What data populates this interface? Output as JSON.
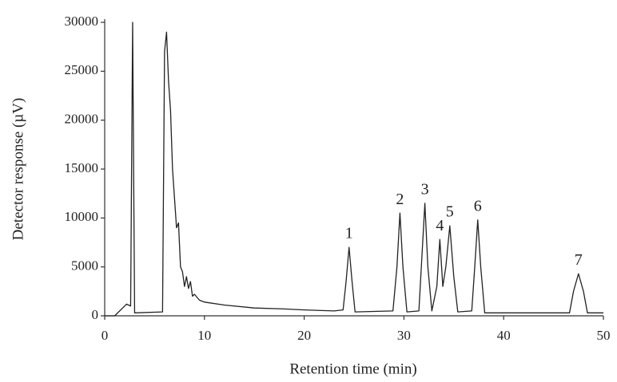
{
  "chart_data": {
    "type": "line",
    "xlabel": "Retention time (min)",
    "ylabel": "Detector response (µV)",
    "x": [
      0,
      1,
      1.8,
      2.2,
      2.6,
      2.8,
      2.9,
      3.0,
      5.8,
      6.0,
      6.2,
      6.4,
      6.6,
      6.8,
      7.0,
      7.2,
      7.4,
      7.6,
      7.8,
      8.0,
      8.2,
      8.4,
      8.6,
      8.8,
      9.0,
      9.5,
      10,
      12,
      15,
      18,
      20,
      23,
      23.9,
      24.2,
      24.5,
      24.8,
      25.1,
      28.9,
      29.3,
      29.6,
      29.9,
      30.3,
      31.5,
      31.8,
      32.1,
      32.4,
      32.8,
      33.3,
      33.6,
      33.9,
      34.2,
      34.6,
      35.0,
      35.4,
      36.8,
      37.1,
      37.4,
      37.7,
      38.1,
      46.6,
      47.0,
      47.5,
      48.0,
      48.4,
      50
    ],
    "values": [
      0,
      0,
      800,
      1200,
      1000,
      30000,
      15000,
      300,
      400,
      27000,
      29000,
      24000,
      21000,
      15000,
      12000,
      9000,
      9500,
      5000,
      4500,
      3000,
      4000,
      2800,
      3500,
      2000,
      2200,
      1600,
      1400,
      1100,
      800,
      700,
      600,
      500,
      600,
      3500,
      7000,
      3500,
      400,
      500,
      5000,
      10500,
      5000,
      400,
      500,
      6000,
      11500,
      5000,
      500,
      3000,
      7800,
      3000,
      5000,
      9200,
      4000,
      400,
      500,
      5000,
      9800,
      5000,
      300,
      300,
      2500,
      4300,
      2500,
      300,
      300
    ],
    "color": "#222222",
    "xlim": [
      0,
      50
    ],
    "xticks": [
      0,
      10,
      20,
      30,
      40,
      50
    ],
    "ylim": [
      0,
      30000
    ],
    "yticks": [
      0,
      5000,
      10000,
      15000,
      20000,
      25000,
      30000
    ],
    "annotations": [
      {
        "text": "1",
        "x": 24.5,
        "y": 7000
      },
      {
        "text": "2",
        "x": 29.6,
        "y": 10500
      },
      {
        "text": "3",
        "x": 32.1,
        "y": 11500
      },
      {
        "text": "4",
        "x": 33.6,
        "y": 7800
      },
      {
        "text": "5",
        "x": 34.6,
        "y": 9200
      },
      {
        "text": "6",
        "x": 37.4,
        "y": 9800
      },
      {
        "text": "7",
        "x": 47.5,
        "y": 4300
      }
    ]
  }
}
